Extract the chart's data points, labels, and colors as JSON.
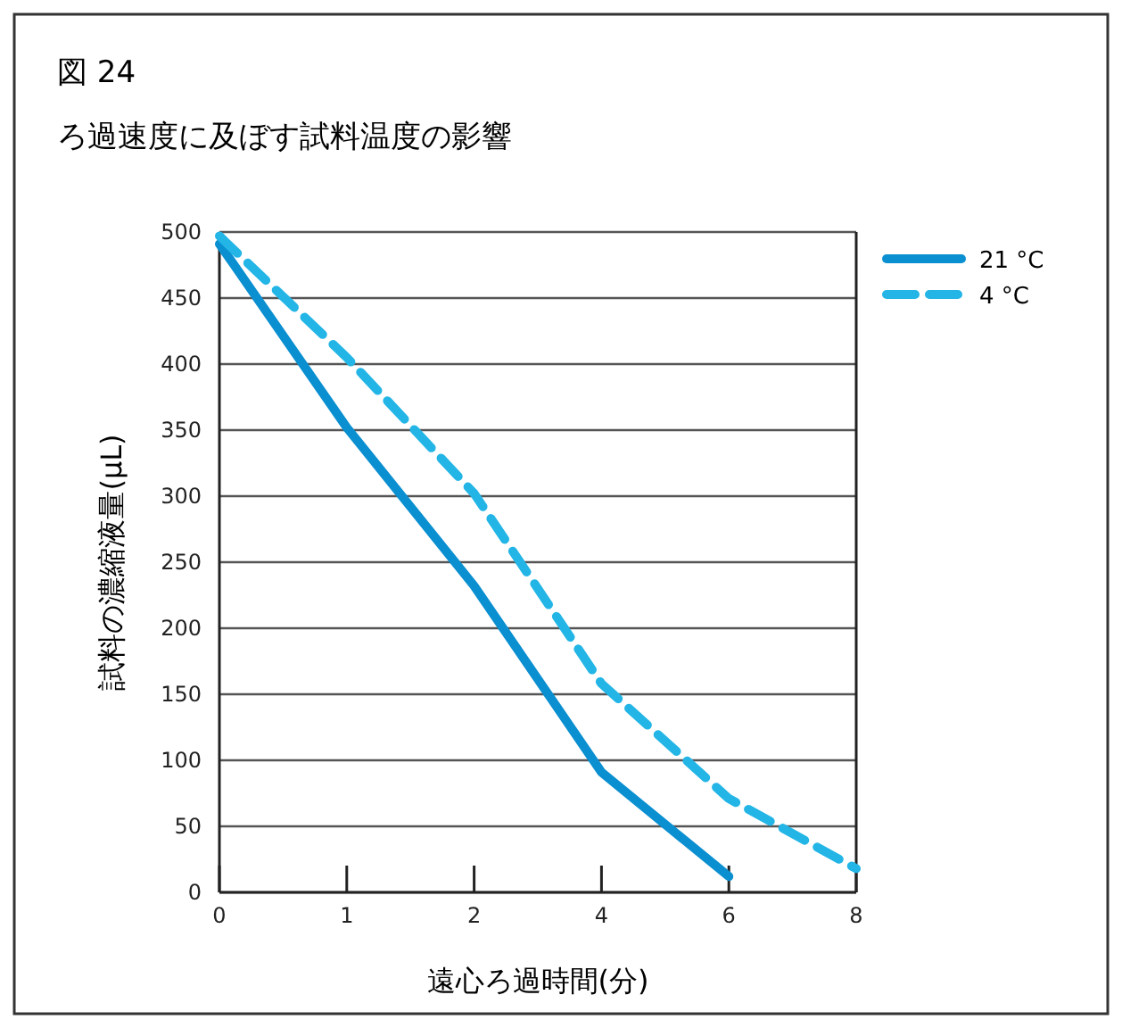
{
  "chart_data": {
    "type": "line",
    "title": "図 24",
    "subtitle": "ろ過速度に及ぼす試料温度の影響",
    "xlabel": "遠心ろ過時間(分)",
    "ylabel": "試料の濃縮液量(µL)",
    "categories": [
      "0",
      "1",
      "2",
      "4",
      "6",
      "8"
    ],
    "series": [
      {
        "name": "21 °C",
        "color": "#0a8fd0",
        "line_style": "solid",
        "values": [
          491,
          352,
          232,
          91,
          12,
          null
        ]
      },
      {
        "name": "4 °C",
        "color": "#22b5e6",
        "line_style": "dashed",
        "values": [
          497,
          405,
          302,
          158,
          71,
          18
        ]
      }
    ],
    "ylim": [
      0,
      500
    ],
    "yticks": [
      0,
      50,
      100,
      150,
      200,
      250,
      300,
      350,
      400,
      450,
      500
    ],
    "grid": "y",
    "legend": "top right",
    "marker": "none"
  }
}
